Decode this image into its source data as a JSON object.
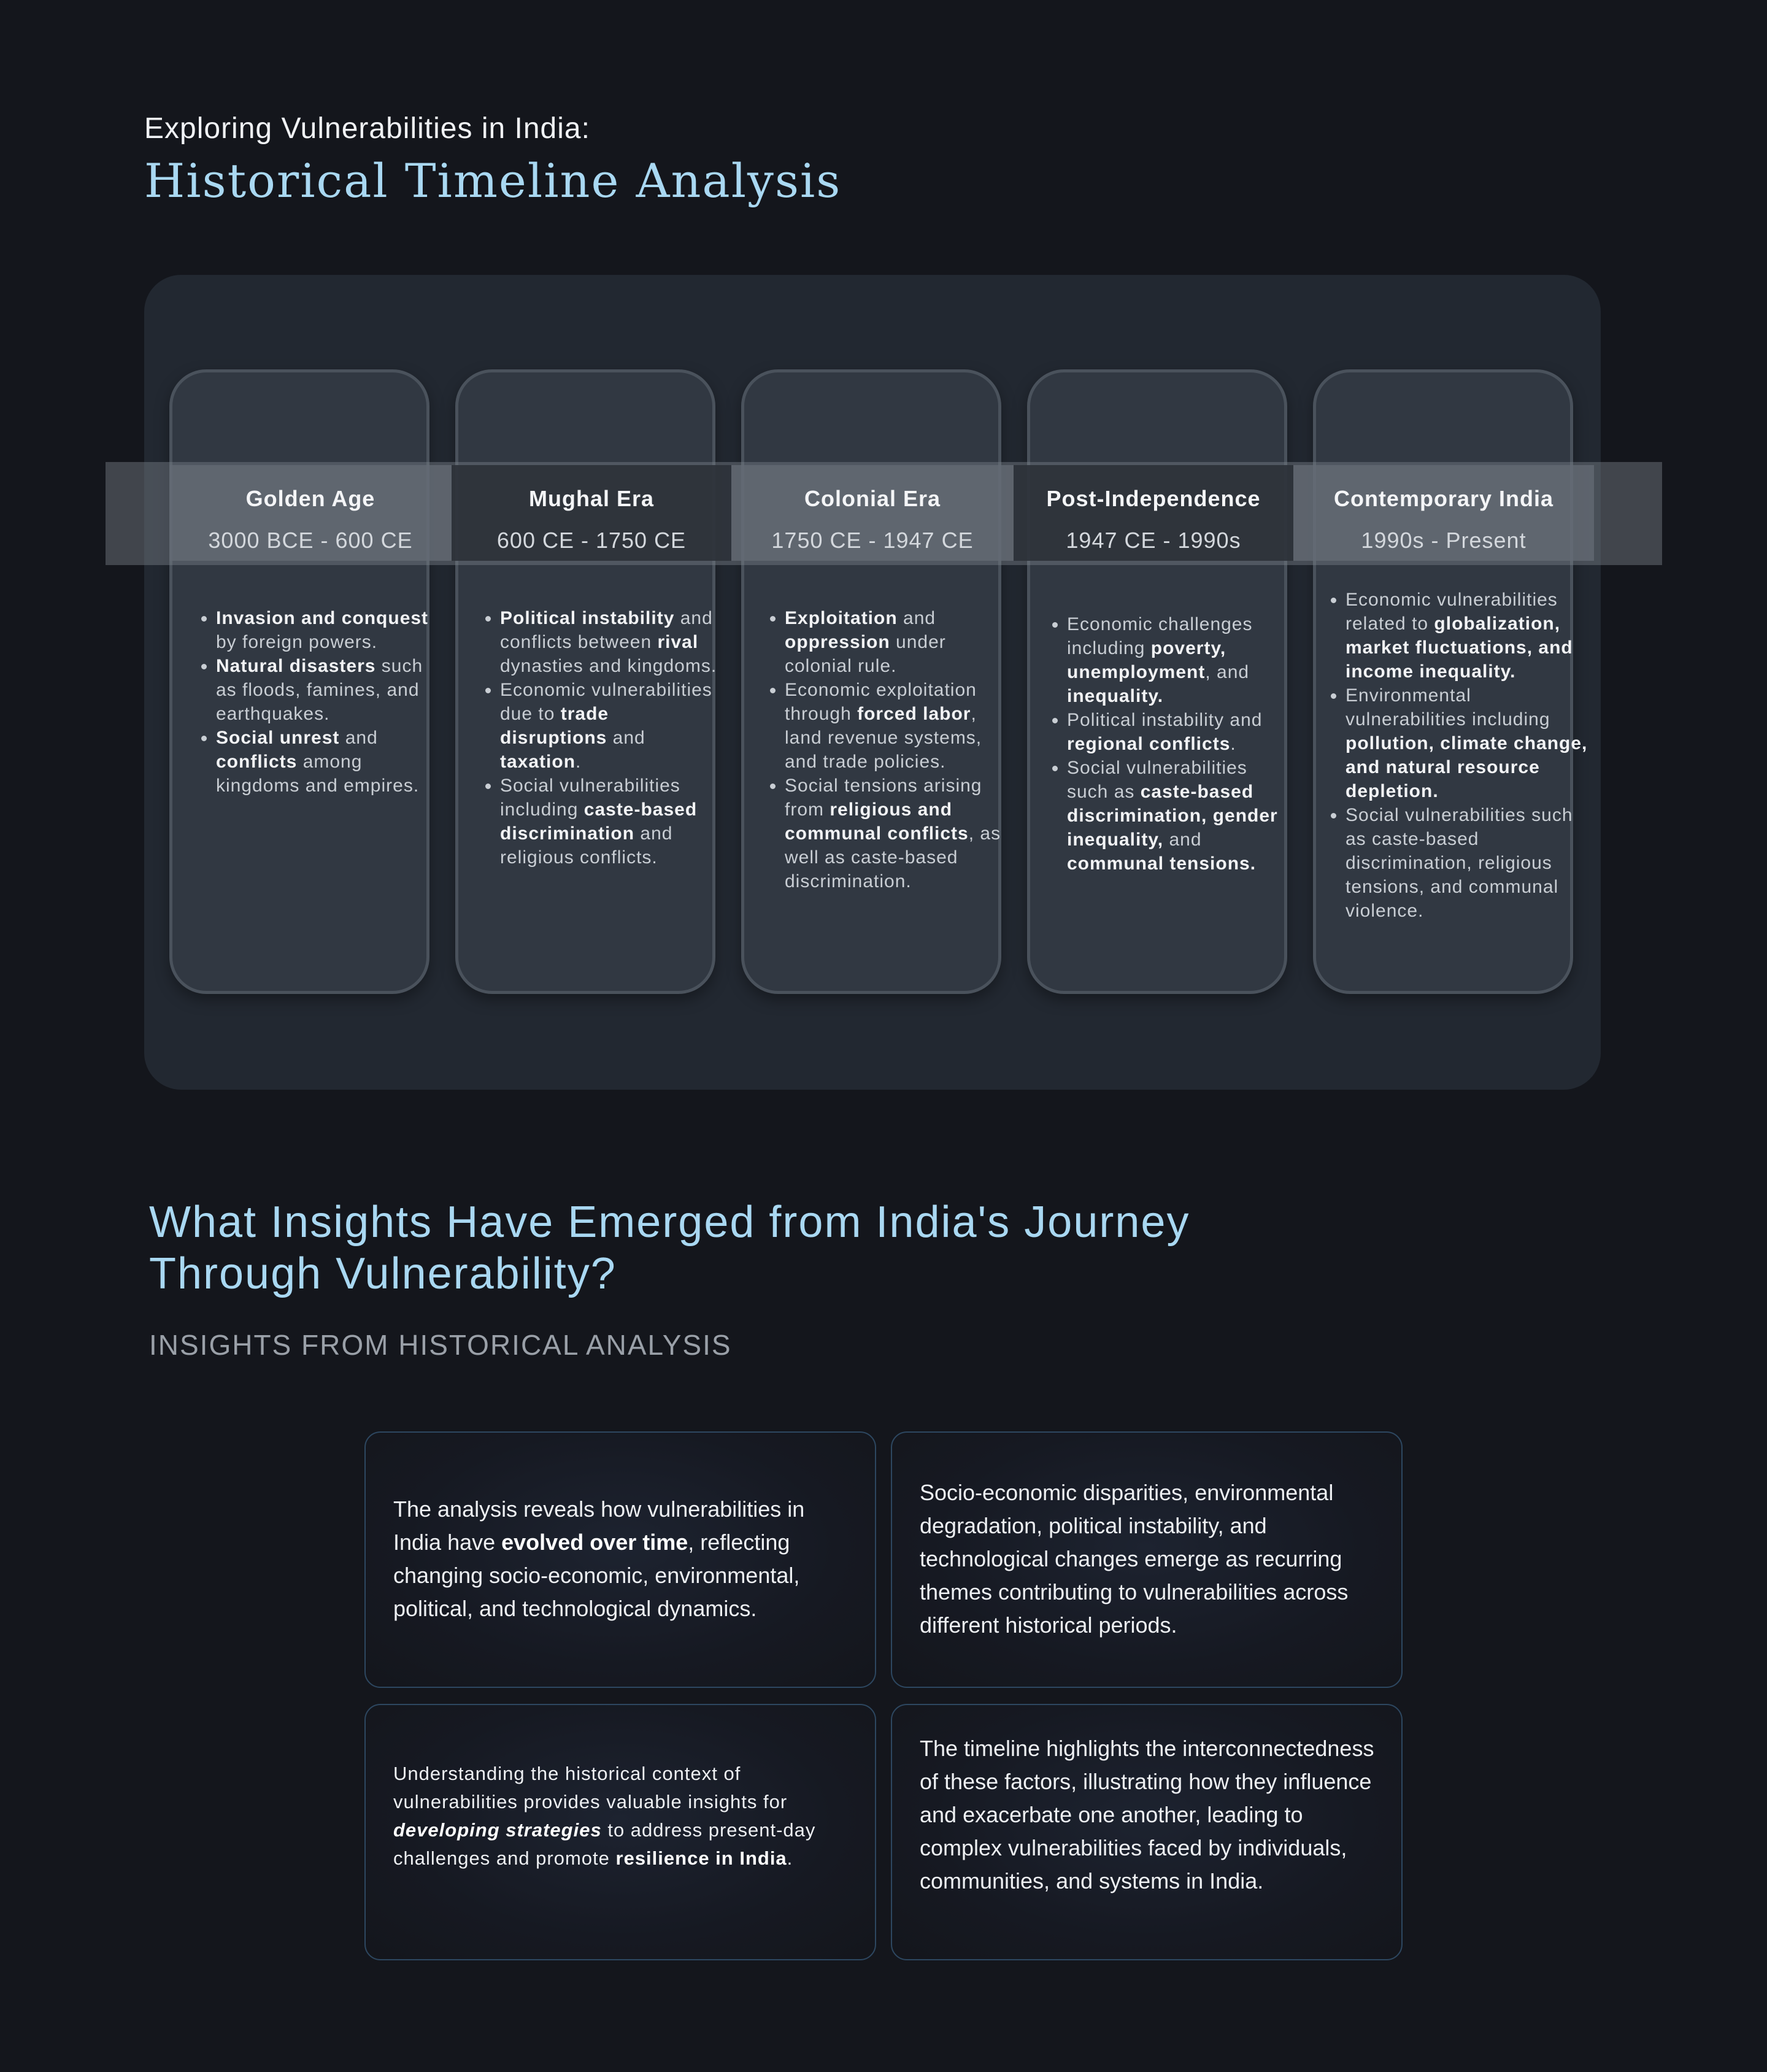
{
  "header": {
    "subtitle": "Exploring Vulnerabilities in India:",
    "title": "Historical Timeline Analysis"
  },
  "timeline": [
    {
      "name": "Golden Age",
      "dates": "3000 BCE - 600 CE",
      "bullets": [
        [
          {
            "t": "Invasion and conquest",
            "b": true
          },
          {
            "t": " by foreign powers."
          }
        ],
        [
          {
            "t": "Natural disasters",
            "b": true
          },
          {
            "t": " such as floods, famines, and earthquakes."
          }
        ],
        [
          {
            "t": "Social unrest",
            "b": true
          },
          {
            "t": " and "
          },
          {
            "t": "conflicts",
            "b": true
          },
          {
            "t": " among kingdoms and empires."
          }
        ]
      ]
    },
    {
      "name": "Mughal Era",
      "dates": "600 CE - 1750 CE",
      "bullets": [
        [
          {
            "t": "Political instability",
            "b": true
          },
          {
            "t": " and conflicts between "
          },
          {
            "t": "rival",
            "b": true
          },
          {
            "t": " dynasties and kingdoms."
          }
        ],
        [
          {
            "t": "Economic vulnerabilities due to "
          },
          {
            "t": "trade disruptions",
            "b": true
          },
          {
            "t": " and "
          },
          {
            "t": "taxation",
            "b": true
          },
          {
            "t": "."
          }
        ],
        [
          {
            "t": "Social vulnerabilities including "
          },
          {
            "t": "caste-based discrimination",
            "b": true
          },
          {
            "t": " and religious conflicts."
          }
        ]
      ]
    },
    {
      "name": "Colonial Era",
      "dates": "1750 CE - 1947 CE",
      "bullets": [
        [
          {
            "t": "Exploitation",
            "b": true
          },
          {
            "t": " and "
          },
          {
            "t": "oppression",
            "b": true
          },
          {
            "t": " under colonial rule."
          }
        ],
        [
          {
            "t": "Economic exploitation through "
          },
          {
            "t": "forced labor",
            "b": true
          },
          {
            "t": ", land revenue systems, and trade policies."
          }
        ],
        [
          {
            "t": "Social tensions arising from "
          },
          {
            "t": "religious and communal conflicts",
            "b": true
          },
          {
            "t": ", as well as caste-based discrimination."
          }
        ]
      ]
    },
    {
      "name": "Post-Independence",
      "dates": "1947 CE - 1990s",
      "bullets": [
        [
          {
            "t": "Economic challenges including "
          },
          {
            "t": "poverty, unemployment",
            "b": true
          },
          {
            "t": ", and "
          },
          {
            "t": "inequality.",
            "b": true
          }
        ],
        [
          {
            "t": "Political instability and "
          },
          {
            "t": "regional conflicts",
            "b": true
          },
          {
            "t": "."
          }
        ],
        [
          {
            "t": "Social vulnerabilities such as "
          },
          {
            "t": "caste-based discrimination, gender inequality,",
            "b": true
          },
          {
            "t": " and "
          },
          {
            "t": "communal tensions.",
            "b": true
          }
        ]
      ]
    },
    {
      "name": "Contemporary India",
      "dates": "1990s - Present",
      "bullets": [
        [
          {
            "t": "Economic vulnerabilities related to "
          },
          {
            "t": "globalization, market fluctuations, and income inequality.",
            "b": true
          }
        ],
        [
          {
            "t": "Environmental vulnerabilities including "
          },
          {
            "t": "pollution, climate change, and natural resource depletion.",
            "b": true
          }
        ],
        [
          {
            "t": "Social vulnerabilities such as caste-based discrimination, religious tensions, and communal violence."
          }
        ]
      ]
    }
  ],
  "insights": {
    "heading": "What Insights Have Emerged from India's Journey Through Vulnerability?",
    "subheading": "INSIGHTS FROM HISTORICAL ANALYSIS",
    "cards": [
      [
        {
          "t": "The analysis reveals how vulnerabilities in India have "
        },
        {
          "t": "evolved over time",
          "b": true
        },
        {
          "t": ", reflecting changing socio-economic, environmental, political, and technological dynamics."
        }
      ],
      [
        {
          "t": "Socio-economic disparities, environmental degradation, political instability, and technological changes emerge as recurring themes contributing to vulnerabilities across different historical periods."
        }
      ],
      [
        {
          "t": "Understanding the historical context of vulnerabilities provides valuable insights for "
        },
        {
          "t": "developing strategies",
          "b": true,
          "i": true
        },
        {
          "t": " to address present-day challenges and promote "
        },
        {
          "t": "resilience in India",
          "b": true
        },
        {
          "t": "."
        }
      ],
      [
        {
          "t": "The timeline highlights the interconnectedness of these factors, illustrating how they influence and exacerbate one another, leading to complex vulnerabilities faced by individuals, communities, and systems in India."
        }
      ]
    ]
  }
}
